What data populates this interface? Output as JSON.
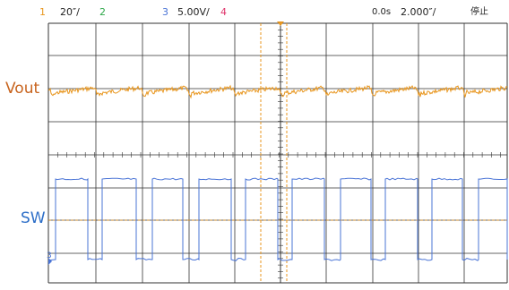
{
  "header": {
    "ch1_number": "1",
    "ch1_scale": "20″/",
    "ch2_number": "2",
    "ch3_number": "3",
    "ch3_scale": "5.00V/",
    "ch4_number": "4",
    "horizontal_position": "0.0s",
    "timebase": "2.000″/",
    "run_state": "停止"
  },
  "labels": {
    "vout": "Vout",
    "sw": "SW",
    "ch3_marker": "3"
  },
  "colors": {
    "ch1": "#e8961e",
    "ch2": "#2ea84a",
    "ch3": "#4a74d6",
    "ch4": "#e0336a",
    "vout_label": "#c8641e",
    "sw_label": "#2e6fc8",
    "grid": "#333333"
  },
  "icons": {
    "trigger_position": "trigger-arrow-icon",
    "ground_marker": "ground-marker-icon"
  }
}
